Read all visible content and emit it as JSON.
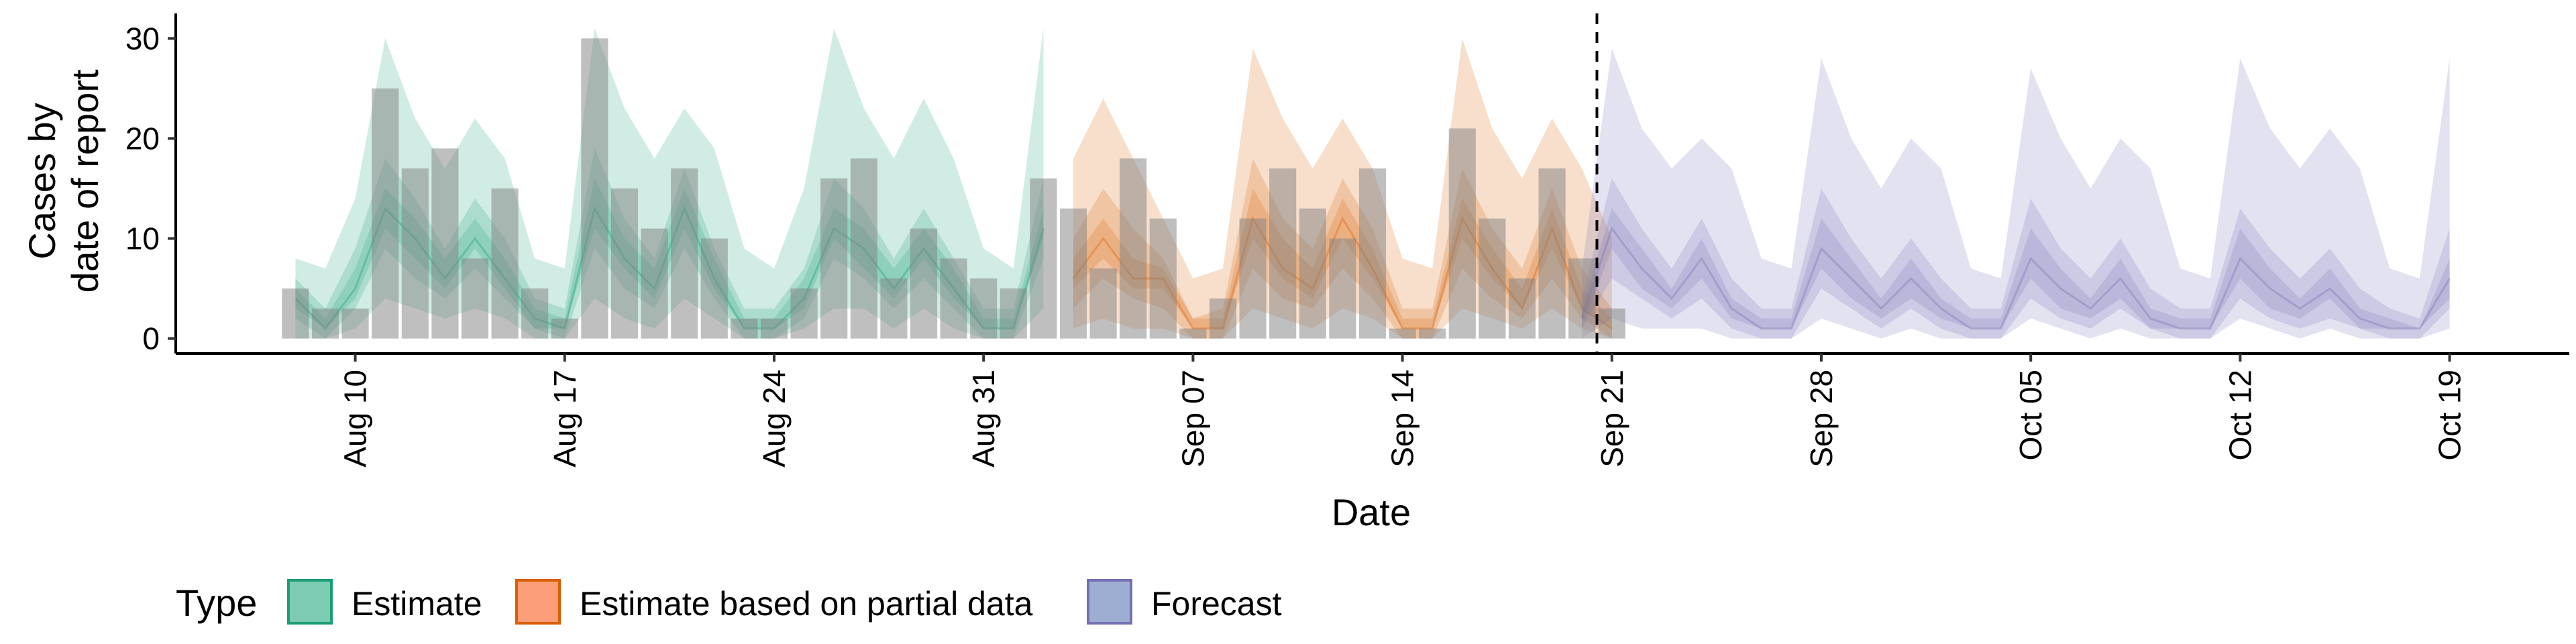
{
  "chart_data": {
    "type": "area",
    "title": "",
    "xlabel": "Date",
    "ylabel_lines": [
      "Cases by",
      "date of report"
    ],
    "x_start": "2021-08-08",
    "x_end": "2021-10-20",
    "xlim": [
      "2021-08-04",
      "2021-10-23"
    ],
    "ylim": [
      -1.5,
      32.5
    ],
    "y_ticks": [
      0,
      10,
      20,
      30
    ],
    "x_ticks": [
      {
        "date": "2021-08-10",
        "label": "Aug 10"
      },
      {
        "date": "2021-08-17",
        "label": "Aug 17"
      },
      {
        "date": "2021-08-24",
        "label": "Aug 24"
      },
      {
        "date": "2021-08-31",
        "label": "Aug 31"
      },
      {
        "date": "2021-09-07",
        "label": "Sep 07"
      },
      {
        "date": "2021-09-14",
        "label": "Sep 14"
      },
      {
        "date": "2021-09-21",
        "label": "Sep 21"
      },
      {
        "date": "2021-09-28",
        "label": "Sep 28"
      },
      {
        "date": "2021-10-05",
        "label": "Oct 05"
      },
      {
        "date": "2021-10-12",
        "label": "Oct 12"
      },
      {
        "date": "2021-10-19",
        "label": "Oct 19"
      }
    ],
    "forecast_start_line": "2021-09-20",
    "grid": false,
    "observed_cases": {
      "start": "2021-08-08",
      "values": [
        5,
        3,
        3,
        25,
        17,
        19,
        8,
        15,
        5,
        2,
        30,
        15,
        11,
        17,
        10,
        2,
        2,
        5,
        16,
        18,
        6,
        11,
        8,
        6,
        5,
        16,
        13,
        7,
        18,
        12,
        1,
        4,
        12,
        17,
        13,
        10,
        17,
        1,
        1,
        21,
        12,
        6,
        17,
        8,
        3
      ]
    },
    "legend": {
      "title": "Type",
      "position": "bottom-left",
      "entries": [
        {
          "label": "Estimate",
          "fill": "#66c2a5",
          "stroke": "#1b9e77"
        },
        {
          "label": "Estimate based on partial data",
          "fill": "#fc8d62",
          "stroke": "#d95f02"
        },
        {
          "label": "Forecast",
          "fill": "#8da0cb",
          "stroke": "#7570b3"
        }
      ]
    },
    "series": [
      {
        "name": "Estimate",
        "color": "#1b9e77",
        "start": "2021-08-08",
        "median": [
          4,
          1,
          5,
          13,
          10,
          6,
          10,
          6,
          2,
          1,
          13,
          8,
          5,
          13,
          6,
          1,
          1,
          4,
          11,
          9,
          5,
          9,
          5,
          1,
          1,
          11
        ],
        "lower90": [
          0,
          0,
          1,
          4,
          3,
          2,
          3,
          2,
          0,
          0,
          4,
          2,
          1,
          4,
          2,
          0,
          0,
          1,
          3,
          3,
          1,
          3,
          1,
          0,
          0,
          3
        ],
        "upper90": [
          8,
          7,
          14,
          30,
          22,
          17,
          22,
          18,
          8,
          7,
          31,
          23,
          18,
          23,
          19,
          9,
          7,
          15,
          31,
          23,
          18,
          24,
          18,
          9,
          7,
          31
        ],
        "lower50": [
          2,
          0,
          3,
          9,
          6,
          4,
          7,
          4,
          1,
          0,
          9,
          5,
          3,
          9,
          4,
          0,
          0,
          2,
          8,
          6,
          3,
          6,
          3,
          0,
          0,
          8
        ],
        "upper50": [
          6,
          3,
          9,
          18,
          14,
          9,
          14,
          10,
          4,
          3,
          19,
          12,
          8,
          17,
          9,
          3,
          3,
          7,
          16,
          13,
          8,
          13,
          8,
          3,
          3,
          16
        ],
        "lower20": [
          3,
          1,
          4,
          11,
          8,
          5,
          9,
          5,
          1,
          1,
          11,
          7,
          4,
          11,
          5,
          1,
          1,
          3,
          10,
          7,
          4,
          8,
          4,
          1,
          1,
          10
        ],
        "upper20": [
          5,
          2,
          7,
          15,
          12,
          8,
          12,
          8,
          3,
          2,
          16,
          10,
          7,
          15,
          8,
          2,
          2,
          6,
          13,
          11,
          7,
          11,
          7,
          2,
          2,
          13
        ]
      },
      {
        "name": "Estimate based on partial data",
        "color": "#d95f02",
        "start": "2021-09-03",
        "median": [
          6,
          10,
          6,
          6,
          1,
          1,
          12,
          7,
          5,
          12,
          7,
          1,
          1,
          12,
          7,
          3,
          11,
          3,
          1
        ],
        "lower90": [
          1,
          2,
          1,
          1,
          0,
          0,
          3,
          2,
          1,
          3,
          2,
          0,
          0,
          3,
          2,
          1,
          3,
          1,
          0
        ],
        "upper90": [
          18,
          24,
          18,
          12,
          6,
          7,
          29,
          22,
          17,
          22,
          17,
          8,
          7,
          30,
          21,
          16,
          22,
          17,
          10
        ],
        "lower50": [
          3,
          6,
          4,
          3,
          0,
          0,
          7,
          4,
          3,
          7,
          4,
          0,
          0,
          7,
          4,
          2,
          6,
          2,
          0
        ],
        "upper50": [
          10,
          15,
          11,
          8,
          2,
          3,
          18,
          12,
          9,
          16,
          11,
          3,
          3,
          17,
          11,
          7,
          15,
          7,
          3
        ],
        "lower20": [
          5,
          8,
          5,
          5,
          1,
          1,
          10,
          6,
          4,
          10,
          6,
          1,
          1,
          10,
          6,
          3,
          9,
          3,
          1
        ],
        "upper20": [
          8,
          12,
          8,
          7,
          2,
          2,
          15,
          10,
          7,
          14,
          9,
          2,
          2,
          14,
          9,
          5,
          13,
          5,
          2
        ]
      },
      {
        "name": "Forecast",
        "color": "#7570b3",
        "start": "2021-09-20",
        "median": [
          2,
          11,
          7,
          4,
          8,
          3,
          1,
          1,
          9,
          6,
          3,
          6,
          3,
          1,
          1,
          8,
          5,
          3,
          6,
          2,
          1,
          1,
          8,
          5,
          3,
          5,
          2,
          1,
          1,
          6
        ],
        "lower90": [
          0,
          2,
          1,
          1,
          1,
          0,
          0,
          0,
          2,
          1,
          0,
          1,
          0,
          0,
          0,
          2,
          1,
          0,
          1,
          0,
          0,
          0,
          2,
          1,
          0,
          1,
          0,
          0,
          0,
          1
        ],
        "upper90": [
          7,
          29,
          21,
          17,
          20,
          17,
          8,
          7,
          28,
          20,
          15,
          20,
          17,
          7,
          6,
          27,
          20,
          15,
          20,
          17,
          7,
          6,
          28,
          21,
          17,
          21,
          17,
          7,
          6,
          28
        ],
        "lower50": [
          1,
          6,
          4,
          2,
          4,
          1,
          0,
          0,
          5,
          3,
          1,
          3,
          1,
          0,
          0,
          4,
          2,
          1,
          3,
          1,
          0,
          0,
          4,
          2,
          1,
          2,
          1,
          0,
          0,
          3
        ],
        "upper50": [
          4,
          16,
          11,
          7,
          12,
          6,
          3,
          3,
          15,
          10,
          6,
          10,
          6,
          3,
          3,
          14,
          9,
          6,
          10,
          5,
          3,
          3,
          13,
          9,
          6,
          9,
          5,
          3,
          2,
          11
        ],
        "lower20": [
          1,
          9,
          5,
          3,
          6,
          2,
          1,
          1,
          7,
          4,
          2,
          4,
          2,
          1,
          1,
          6,
          3,
          2,
          4,
          1,
          1,
          1,
          6,
          3,
          2,
          4,
          1,
          1,
          1,
          4
        ],
        "upper20": [
          3,
          13,
          9,
          5,
          10,
          4,
          2,
          2,
          12,
          8,
          4,
          8,
          4,
          2,
          2,
          11,
          7,
          4,
          8,
          3,
          2,
          2,
          11,
          7,
          4,
          7,
          3,
          2,
          1,
          8
        ]
      }
    ]
  }
}
